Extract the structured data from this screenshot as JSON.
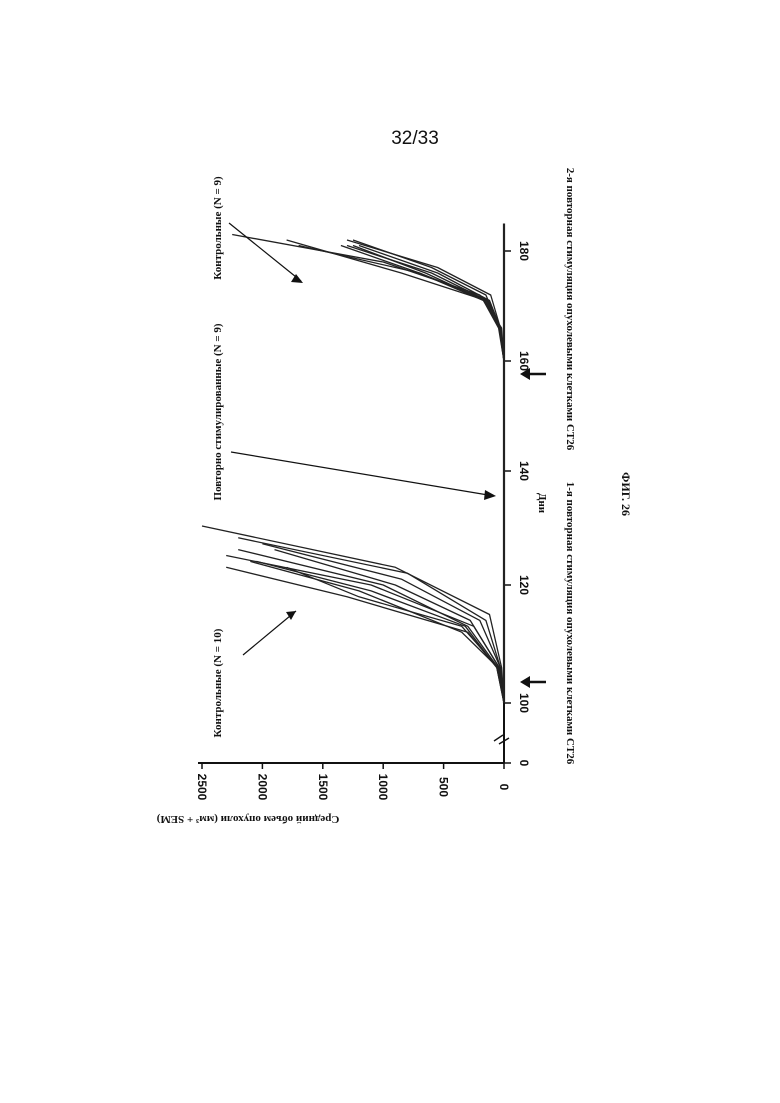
{
  "page": {
    "number": "32/33"
  },
  "figure": {
    "caption": "ФИГ. 26"
  },
  "chart_data": {
    "type": "line",
    "title": "",
    "xlabel": "Дни",
    "ylabel": "Средний объем опухоли (мм³ + SEM)",
    "xlim_segment_1": [
      100,
      130
    ],
    "xlim_segment_2": [
      130,
      185
    ],
    "x_axis_break": true,
    "x_axis_zero_label": "0",
    "ylim": [
      0,
      2500
    ],
    "xticks": [
      "0",
      "100",
      "120",
      "140",
      "160",
      "180"
    ],
    "yticks": [
      "0",
      "500",
      "1000",
      "1500",
      "2000",
      "2500"
    ],
    "grid": false,
    "orientation": "rotated 90° clockwise on page",
    "annotations": [
      {
        "text": "Контрольные (N = 10)",
        "points_to": [
          117,
          1900
        ]
      },
      {
        "text": "Повторно стимулированные (N = 9)",
        "points_to": [
          140,
          0
        ]
      },
      {
        "text": "Контрольные (N = 9)",
        "points_to": [
          181,
          1700
        ]
      },
      {
        "text": "1-я повторная стимуляция опухолевыми клетками CT26",
        "arrow_at_day": 102
      },
      {
        "text": "2-я повторная стимуляция опухолевыми клетками CT26",
        "arrow_at_day": 162
      }
    ],
    "series": [
      {
        "group": "control_1",
        "x": [
          100,
          106,
          112,
          118,
          123
        ],
        "y": [
          0,
          60,
          300,
          1300,
          2300
        ]
      },
      {
        "group": "control_1",
        "x": [
          100,
          106,
          112,
          119,
          124
        ],
        "y": [
          0,
          50,
          350,
          1200,
          2100
        ]
      },
      {
        "group": "control_1",
        "x": [
          100,
          106,
          113,
          120,
          125
        ],
        "y": [
          0,
          40,
          250,
          1100,
          2300
        ]
      },
      {
        "group": "control_1",
        "x": [
          100,
          106,
          113,
          120,
          126
        ],
        "y": [
          0,
          50,
          300,
          1000,
          2200
        ]
      },
      {
        "group": "control_1",
        "x": [
          100,
          106,
          113,
          119,
          124
        ],
        "y": [
          0,
          60,
          320,
          1100,
          2050
        ]
      },
      {
        "group": "control_1",
        "x": [
          100,
          106,
          114,
          120,
          126
        ],
        "y": [
          0,
          40,
          280,
          900,
          1900
        ]
      },
      {
        "group": "control_1",
        "x": [
          100,
          106,
          114,
          121,
          127
        ],
        "y": [
          0,
          30,
          200,
          850,
          2000
        ]
      },
      {
        "group": "control_1",
        "x": [
          100,
          106,
          114,
          122,
          128
        ],
        "y": [
          0,
          30,
          150,
          800,
          2200
        ]
      },
      {
        "group": "control_1",
        "x": [
          100,
          106,
          115,
          123,
          130
        ],
        "y": [
          0,
          20,
          120,
          900,
          2500
        ]
      },
      {
        "group": "control_1",
        "x": [
          100,
          106,
          113,
          118,
          123
        ],
        "y": [
          0,
          50,
          350,
          1200,
          1800
        ]
      },
      {
        "group": "restimulated",
        "x": [
          100,
          185
        ],
        "y": [
          0,
          0
        ]
      },
      {
        "group": "control_2",
        "x": [
          160,
          166,
          171,
          176,
          182
        ],
        "y": [
          0,
          40,
          150,
          850,
          1800
        ]
      },
      {
        "group": "control_2",
        "x": [
          160,
          166,
          171,
          176,
          181
        ],
        "y": [
          0,
          30,
          130,
          700,
          1700
        ]
      },
      {
        "group": "control_2",
        "x": [
          160,
          166,
          171,
          176,
          181
        ],
        "y": [
          0,
          40,
          160,
          650,
          1250
        ]
      },
      {
        "group": "control_2",
        "x": [
          160,
          166,
          171,
          176,
          181
        ],
        "y": [
          0,
          35,
          140,
          600,
          1300
        ]
      },
      {
        "group": "control_2",
        "x": [
          160,
          166,
          171,
          176,
          181
        ],
        "y": [
          0,
          45,
          170,
          700,
          1350
        ]
      },
      {
        "group": "control_2",
        "x": [
          160,
          166,
          171,
          176,
          181
        ],
        "y": [
          0,
          30,
          120,
          550,
          1200
        ]
      },
      {
        "group": "control_2",
        "x": [
          160,
          166,
          172,
          177,
          182
        ],
        "y": [
          0,
          30,
          110,
          550,
          1300
        ]
      },
      {
        "group": "control_2",
        "x": [
          160,
          166,
          172,
          177,
          182
        ],
        "y": [
          0,
          35,
          150,
          600,
          1250
        ]
      },
      {
        "group": "control_2",
        "x": [
          160,
          166,
          172,
          178,
          183
        ],
        "y": [
          0,
          20,
          200,
          1000,
          2250
        ]
      }
    ]
  }
}
